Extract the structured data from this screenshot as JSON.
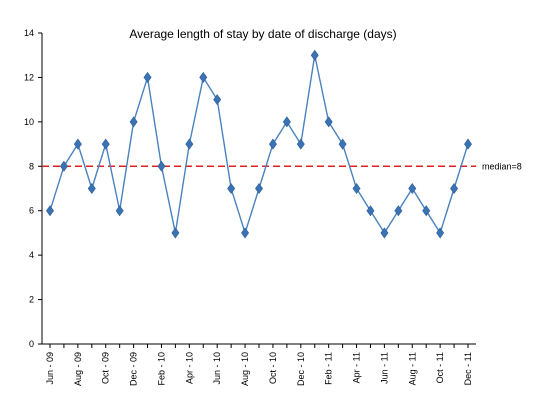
{
  "chart_data": {
    "type": "line",
    "title": "Average length of stay by date of discharge (days)",
    "xlabel": "",
    "ylabel": "",
    "ylim": [
      0,
      14
    ],
    "yticks": [
      0,
      2,
      4,
      6,
      8,
      10,
      12,
      14
    ],
    "grid": false,
    "categories": [
      "Jun - 09",
      "Jul - 09",
      "Aug - 09",
      "Sep - 09",
      "Oct - 09",
      "Nov - 09",
      "Dec - 09",
      "Jan - 10",
      "Feb - 10",
      "Mar - 10",
      "Apr - 10",
      "May - 10",
      "Jun - 10",
      "Jul - 10",
      "Aug - 10",
      "Sep - 10",
      "Oct - 10",
      "Nov - 10",
      "Dec - 10",
      "Jan - 11",
      "Feb - 11",
      "Mar - 11",
      "Apr - 11",
      "May - 11",
      "Jun - 11",
      "Jul - 11",
      "Aug - 11",
      "Sep - 11",
      "Oct - 11",
      "Nov - 11",
      "Dec - 11"
    ],
    "tick_labels": [
      "Jun - 09",
      "Aug - 09",
      "Oct - 09",
      "Dec - 09",
      "Feb - 10",
      "Apr - 10",
      "Jun - 10",
      "Aug - 10",
      "Oct - 10",
      "Dec - 10",
      "Feb - 11",
      "Apr - 11",
      "Jun - 11",
      "Aug - 11",
      "Oct - 11",
      "Dec - 11"
    ],
    "series": [
      {
        "name": "",
        "values": [
          6,
          8,
          9,
          7,
          9,
          6,
          10,
          12,
          8,
          5,
          9,
          12,
          11,
          7,
          5,
          7,
          9,
          10,
          9,
          13,
          10,
          9,
          7,
          6,
          5,
          6,
          7,
          6,
          5,
          7,
          9
        ],
        "color": "#3a72b4"
      }
    ],
    "reference_line": {
      "value": 8,
      "label": "median=8",
      "color": "#e02020"
    }
  }
}
